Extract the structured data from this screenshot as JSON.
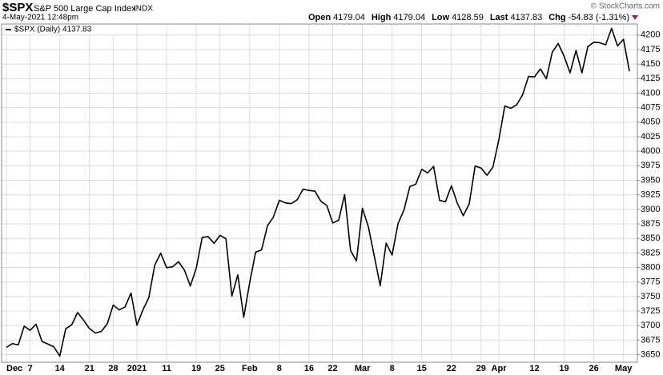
{
  "chart_data": {
    "type": "line",
    "title": "$SPX",
    "subtitle": "S&P 500 Large Cap Index",
    "exchange": "INDX",
    "datetime": "4-May-2021 12:48pm",
    "credit": "© StockCharts.com",
    "quote": [
      {
        "label": "Open",
        "value": 4179.04
      },
      {
        "label": "High",
        "value": 4179.04
      },
      {
        "label": "Low",
        "value": 4128.59
      },
      {
        "label": "Last",
        "value": 4137.83
      },
      {
        "label": "Chg",
        "value": -54.83,
        "pct": "(-1.31%)"
      }
    ],
    "categories": [
      "Dec",
      null,
      null,
      null,
      "7",
      null,
      null,
      null,
      null,
      "14",
      null,
      null,
      null,
      null,
      "21",
      null,
      null,
      null,
      "28",
      null,
      null,
      null,
      "2021",
      null,
      null,
      null,
      null,
      "11",
      null,
      null,
      null,
      null,
      "19",
      null,
      null,
      null,
      "25",
      null,
      null,
      null,
      null,
      "Feb",
      null,
      null,
      null,
      null,
      "8",
      null,
      null,
      null,
      null,
      "16",
      null,
      null,
      null,
      "22",
      null,
      null,
      null,
      null,
      "Mar",
      null,
      null,
      null,
      null,
      "8",
      null,
      null,
      null,
      null,
      "15",
      null,
      null,
      null,
      null,
      "22",
      null,
      null,
      null,
      null,
      "29",
      null,
      null,
      "Apr",
      null,
      null,
      null,
      null,
      null,
      "12",
      null,
      null,
      null,
      null,
      "19",
      null,
      null,
      null,
      null,
      "26",
      null,
      null,
      null,
      null,
      "May",
      null
    ],
    "series": [
      {
        "name": "$SPX (Daily) 4137.83",
        "color": "#000000",
        "values": [
          3662.45,
          3669.01,
          3666.72,
          3699.12,
          3691.96,
          3702.25,
          3672.82,
          3668.1,
          3663.46,
          3647.49,
          3694.62,
          3701.17,
          3722.48,
          3709.41,
          3694.92,
          3687.26,
          3690.01,
          3703.06,
          3735.36,
          3727.04,
          3732.04,
          3756.07,
          3700.65,
          3726.86,
          3748.14,
          3803.79,
          3824.68,
          3799.61,
          3801.19,
          3809.84,
          3795.54,
          3768.25,
          3798.91,
          3851.85,
          3853.07,
          3841.47,
          3855.36,
          3849.62,
          3750.77,
          3787.38,
          3714.24,
          3773.86,
          3826.31,
          3830.17,
          3871.74,
          3886.83,
          3915.59,
          3911.23,
          3909.88,
          3916.38,
          3934.83,
          3932.59,
          3931.33,
          3913.97,
          3906.71,
          3876.5,
          3881.37,
          3925.43,
          3829.34,
          3811.15,
          3901.82,
          3870.29,
          3819.72,
          3768.47,
          3841.94,
          3821.35,
          3875.44,
          3898.81,
          3939.34,
          3943.34,
          3968.94,
          3962.71,
          3974.12,
          3915.46,
          3913.1,
          3940.59,
          3910.52,
          3889.14,
          3909.52,
          3974.54,
          3971.09,
          3958.55,
          3972.89,
          4019.87,
          4077.91,
          4073.94,
          4079.95,
          4097.17,
          4128.8,
          4127.99,
          4141.59,
          4124.66,
          4170.42,
          4185.47,
          4163.26,
          4134.94,
          4173.42,
          4134.98,
          4180.17,
          4187.62,
          4186.72,
          4183.18,
          4211.47,
          4181.17,
          4192.66,
          4137.83
        ]
      }
    ],
    "ylim": [
      3637,
      4219
    ],
    "yticks": [
      3650,
      3675,
      3700,
      3725,
      3750,
      3775,
      3800,
      3825,
      3850,
      3875,
      3900,
      3925,
      3950,
      3975,
      4000,
      4025,
      4050,
      4075,
      4100,
      4125,
      4150,
      4175,
      4200
    ],
    "grid": true
  }
}
